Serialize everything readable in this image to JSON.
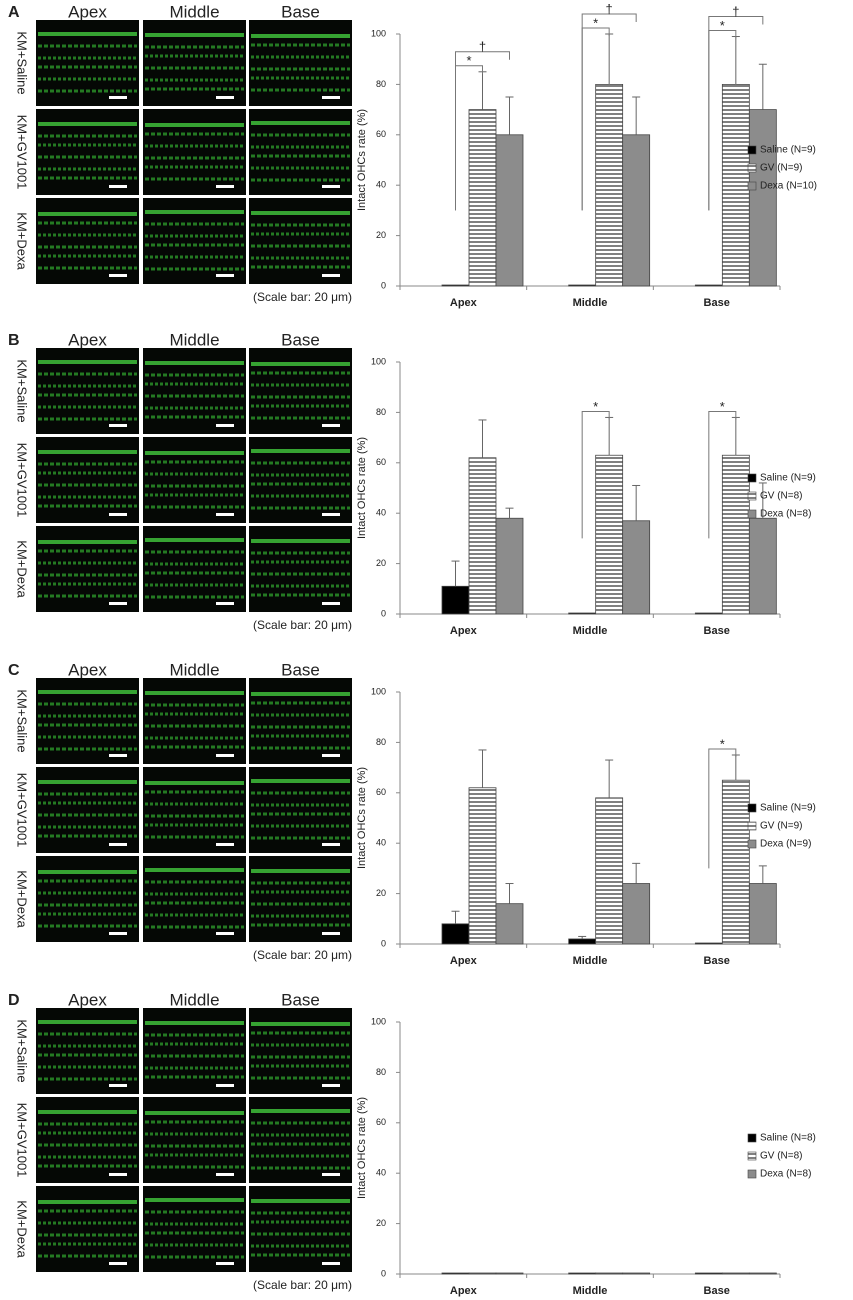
{
  "panels": [
    {
      "label": "A",
      "columns": [
        "Apex",
        "Middle",
        "Base"
      ],
      "rows": [
        "KM+Saline",
        "KM+GV1001",
        "KM+Dexa"
      ],
      "scale_note": "(Scale bar: 20 μm)"
    },
    {
      "label": "B",
      "columns": [
        "Apex",
        "Middle",
        "Base"
      ],
      "rows": [
        "KM+Saline",
        "KM+GV1001",
        "KM+Dexa"
      ],
      "scale_note": "(Scale bar: 20 μm)"
    },
    {
      "label": "C",
      "columns": [
        "Apex",
        "Middle",
        "Base"
      ],
      "rows": [
        "KM+Saline",
        "KM+GV1001",
        "KM+Dexa"
      ],
      "scale_note": "(Scale bar: 20 μm)"
    },
    {
      "label": "D",
      "columns": [
        "Apex",
        "Middle",
        "Base"
      ],
      "rows": [
        "KM+Saline",
        "KM+GV1001",
        "KM+Dexa"
      ],
      "scale_note": "(Scale bar: 20 μm)"
    }
  ],
  "chart_data": [
    {
      "type": "bar",
      "ylabel": "Intact OHCs rate (%)",
      "categories": [
        "Apex",
        "Middle",
        "Base"
      ],
      "ylim": [
        0,
        100
      ],
      "yticks": [
        0,
        20,
        40,
        60,
        80,
        100
      ],
      "legend": "right",
      "series": [
        {
          "name": "Saline (N=9)",
          "color": "#000000",
          "values": [
            0,
            0,
            0
          ],
          "errors": [
            0,
            0,
            0
          ]
        },
        {
          "name": "GV  (N=9)",
          "color": "#ffffff",
          "hatch": "horizontal",
          "values": [
            70,
            80,
            80
          ],
          "errors": [
            15,
            20,
            19
          ]
        },
        {
          "name": "Dexa (N=10)",
          "color": "#8c8c8c",
          "values": [
            60,
            60,
            70
          ],
          "errors": [
            15,
            15,
            18
          ]
        }
      ],
      "annotations": [
        {
          "text": "*",
          "category": 0,
          "pair": [
            0,
            1
          ]
        },
        {
          "text": "†",
          "category": 0,
          "pair": [
            0,
            2
          ]
        },
        {
          "text": "*",
          "category": 1,
          "pair": [
            0,
            1
          ]
        },
        {
          "text": "†",
          "category": 1,
          "pair": [
            0,
            2
          ]
        },
        {
          "text": "*",
          "category": 2,
          "pair": [
            0,
            1
          ]
        },
        {
          "text": "†",
          "category": 2,
          "pair": [
            0,
            2
          ]
        }
      ]
    },
    {
      "type": "bar",
      "ylabel": "Intact OHCs rate (%)",
      "categories": [
        "Apex",
        "Middle",
        "Base"
      ],
      "ylim": [
        0,
        100
      ],
      "yticks": [
        0,
        20,
        40,
        60,
        80,
        100
      ],
      "legend": "right",
      "series": [
        {
          "name": "Saline (N=9)",
          "color": "#000000",
          "values": [
            11,
            0,
            0
          ],
          "errors": [
            10,
            0,
            0
          ]
        },
        {
          "name": "GV  (N=8)",
          "color": "#ffffff",
          "hatch": "horizontal",
          "values": [
            62,
            63,
            63
          ],
          "errors": [
            15,
            15,
            15
          ]
        },
        {
          "name": "Dexa  (N=8)",
          "color": "#8c8c8c",
          "values": [
            38,
            37,
            38
          ],
          "errors": [
            4,
            14,
            14
          ]
        }
      ],
      "annotations": [
        {
          "text": "*",
          "category": 1,
          "pair": [
            0,
            1
          ]
        },
        {
          "text": "*",
          "category": 2,
          "pair": [
            0,
            1
          ]
        }
      ]
    },
    {
      "type": "bar",
      "ylabel": "Intact OHCs rate (%)",
      "categories": [
        "Apex",
        "Middle",
        "Base"
      ],
      "ylim": [
        0,
        100
      ],
      "yticks": [
        0,
        20,
        40,
        60,
        80,
        100
      ],
      "legend": "right",
      "series": [
        {
          "name": "Saline (N=9)",
          "color": "#000000",
          "values": [
            8,
            2,
            0
          ],
          "errors": [
            5,
            1,
            0
          ]
        },
        {
          "name": "GV  (N=9)",
          "color": "#ffffff",
          "hatch": "horizontal",
          "values": [
            62,
            58,
            65
          ],
          "errors": [
            15,
            15,
            10
          ]
        },
        {
          "name": "Dexa  (N=9)",
          "color": "#8c8c8c",
          "values": [
            16,
            24,
            24
          ],
          "errors": [
            8,
            8,
            7
          ]
        }
      ],
      "annotations": [
        {
          "text": "*",
          "category": 2,
          "pair": [
            0,
            1
          ]
        }
      ]
    },
    {
      "type": "bar",
      "ylabel": "Intact OHCs rate (%)",
      "categories": [
        "Apex",
        "Middle",
        "Base"
      ],
      "ylim": [
        0,
        100
      ],
      "yticks": [
        0,
        20,
        40,
        60,
        80,
        100
      ],
      "legend": "right",
      "series": [
        {
          "name": "Saline (N=8)",
          "color": "#000000",
          "values": [
            0,
            0,
            0
          ],
          "errors": [
            0,
            0,
            0
          ]
        },
        {
          "name": "GV  (N=8)",
          "color": "#ffffff",
          "hatch": "horizontal",
          "values": [
            0,
            0,
            0
          ],
          "errors": [
            0,
            0,
            0
          ]
        },
        {
          "name": "Dexa (N=8)",
          "color": "#8c8c8c",
          "values": [
            0,
            0,
            0
          ],
          "errors": [
            0,
            0,
            0
          ]
        }
      ],
      "annotations": []
    }
  ]
}
